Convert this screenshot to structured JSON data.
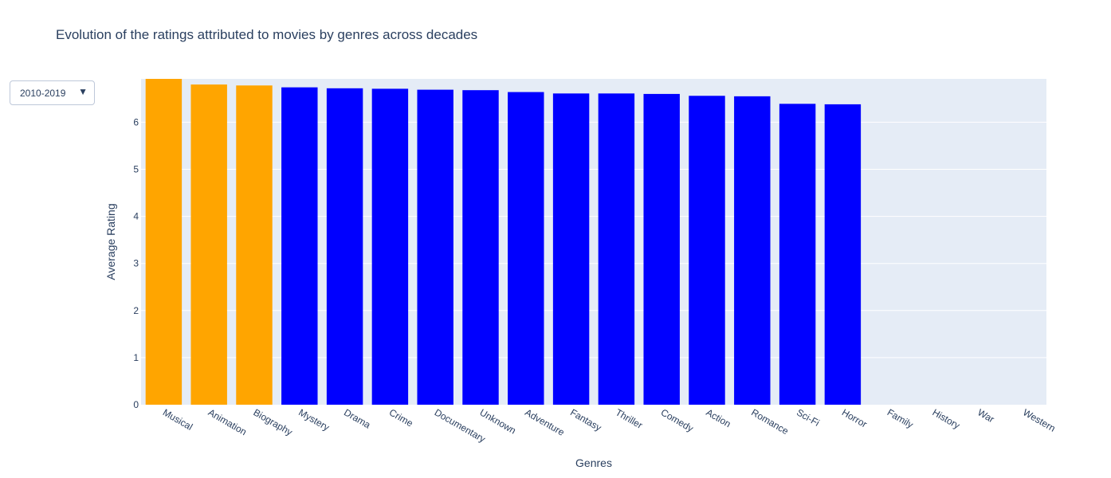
{
  "chart_data": {
    "type": "bar",
    "title": "Evolution of the ratings attributed to movies by genres across decades",
    "xlabel": "Genres",
    "ylabel": "Average Rating",
    "ylim": [
      0,
      6.92
    ],
    "yticks": [
      0,
      1,
      2,
      3,
      4,
      5,
      6
    ],
    "grid": true,
    "categories": [
      "Musical",
      "Animation",
      "Biography",
      "Mystery",
      "Drama",
      "Crime",
      "Documentary",
      "Unknown",
      "Adventure",
      "Fantasy",
      "Thriller",
      "Comedy",
      "Action",
      "Romance",
      "Sci-Fi",
      "Horror",
      "Family",
      "History",
      "War",
      "Western"
    ],
    "values": [
      6.92,
      6.8,
      6.78,
      6.74,
      6.72,
      6.71,
      6.69,
      6.68,
      6.64,
      6.61,
      6.61,
      6.6,
      6.56,
      6.55,
      6.39,
      6.38,
      null,
      null,
      null,
      null
    ],
    "bar_colors": [
      "#FFA500",
      "#FFA500",
      "#FFA500",
      "#0000FF",
      "#0000FF",
      "#0000FF",
      "#0000FF",
      "#0000FF",
      "#0000FF",
      "#0000FF",
      "#0000FF",
      "#0000FF",
      "#0000FF",
      "#0000FF",
      "#0000FF",
      "#0000FF",
      "#0000FF",
      "#0000FF",
      "#0000FF",
      "#0000FF"
    ]
  },
  "controls": {
    "decade_selected": "2010-2019",
    "dropdown_arrow": "▼"
  },
  "colors": {
    "plot_background": "#E5ECF6",
    "grid": "#ffffff",
    "text": "#2a3f5f",
    "highlight_bar": "#FFA500",
    "default_bar": "#0000FF"
  }
}
